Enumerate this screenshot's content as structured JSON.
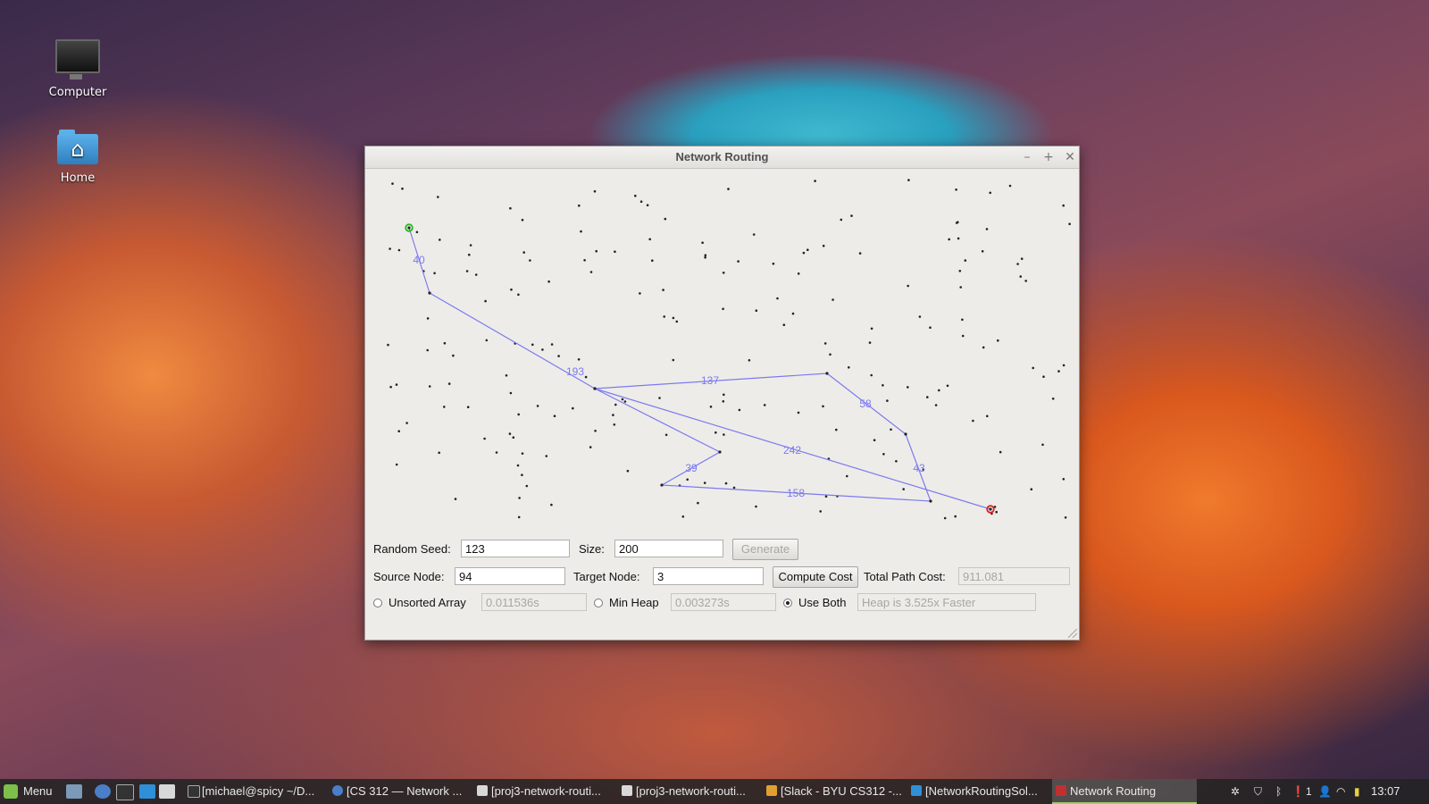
{
  "desktop": {
    "icons": [
      {
        "label": "Computer"
      },
      {
        "label": "Home"
      }
    ]
  },
  "window": {
    "title": "Network Routing",
    "controls": {
      "minimize": "–",
      "maximize": "+",
      "close": "✕"
    }
  },
  "graph": {
    "point_color": "#222222",
    "edge_color": "#7b7bf0",
    "source_color": "#22bb22",
    "target_color": "#dd2222",
    "edge_labels": [
      "40",
      "193",
      "137",
      "58",
      "242",
      "39",
      "43",
      "158"
    ]
  },
  "form": {
    "random_seed_label": "Random Seed:",
    "random_seed_value": "123",
    "size_label": "Size:",
    "size_value": "200",
    "generate_label": "Generate",
    "source_node_label": "Source Node:",
    "source_node_value": "94",
    "target_node_label": "Target Node:",
    "target_node_value": "3",
    "compute_cost_label": "Compute Cost",
    "total_path_cost_label": "Total Path Cost:",
    "total_path_cost_value": "911.081",
    "unsorted_array_label": "Unsorted Array",
    "unsorted_array_time": "0.011536s",
    "min_heap_label": "Min Heap",
    "min_heap_time": "0.003273s",
    "use_both_label": "Use Both",
    "use_both_selected": true,
    "comparison_text": "Heap is 3.525x Faster"
  },
  "taskbar": {
    "menu_label": "Menu",
    "items": [
      {
        "label": "[michael@spicy ~/D...",
        "icon": "terminal-icon",
        "active": false
      },
      {
        "label": "[CS 312 — Network ...",
        "icon": "browser-icon",
        "active": false
      },
      {
        "label": "[proj3-network-routi...",
        "icon": "folder-icon",
        "active": false
      },
      {
        "label": "[proj3-network-routi...",
        "icon": "folder-icon",
        "active": false
      },
      {
        "label": "[Slack - BYU CS312 -...",
        "icon": "slack-icon",
        "active": false
      },
      {
        "label": "[NetworkRoutingSol...",
        "icon": "vscode-icon",
        "active": false
      },
      {
        "label": "Network Routing",
        "icon": "app-icon",
        "active": true
      }
    ],
    "tray_count": "1",
    "clock": "13:07"
  }
}
